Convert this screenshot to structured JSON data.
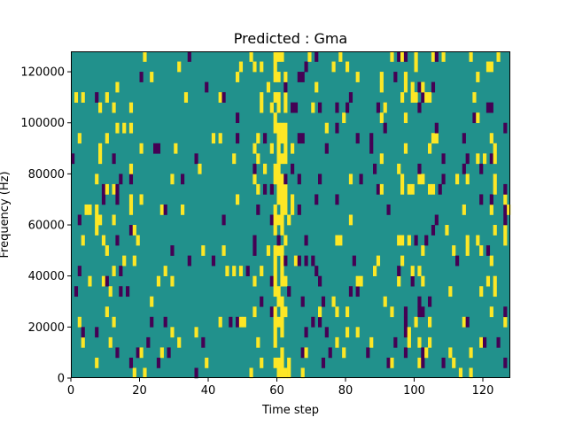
{
  "chart_data": {
    "type": "heatmap",
    "title": "Predicted : Gma",
    "xlabel": "Time step",
    "ylabel": "Frequency (Hz)",
    "xlim": [
      0,
      128
    ],
    "ylim": [
      0,
      128000
    ],
    "xticks": [
      "0",
      "20",
      "40",
      "60",
      "80",
      "100",
      "120"
    ],
    "yticks": [
      "0",
      "20000",
      "40000",
      "60000",
      "80000",
      "100000",
      "120000"
    ],
    "colormap": "viridis",
    "levels": {
      "background": {
        "value": 0,
        "color": "#21918c"
      },
      "high": {
        "value": 1,
        "color": "#fde725"
      },
      "low": {
        "value": -1,
        "color": "#440154"
      }
    },
    "grid": false
  }
}
